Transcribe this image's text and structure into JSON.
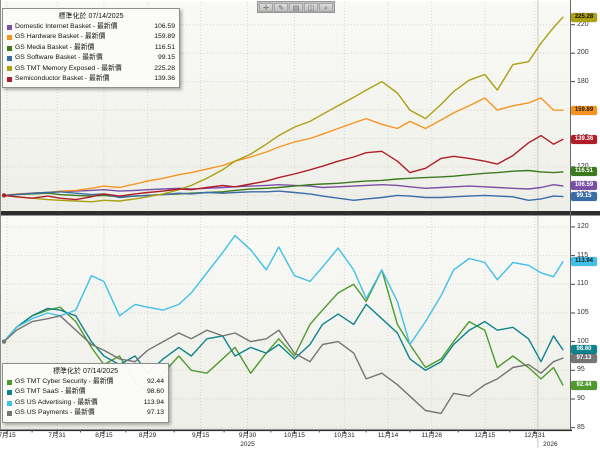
{
  "toolbar": {
    "buttons": [
      {
        "name": "crosshair",
        "glyph": "✛"
      },
      {
        "name": "draw",
        "glyph": "✎"
      },
      {
        "name": "annotate",
        "glyph": "▤"
      },
      {
        "name": "panel",
        "glyph": "◫"
      },
      {
        "name": "zoom",
        "glyph": "⌕"
      }
    ]
  },
  "x_axis": {
    "ticks": [
      {
        "label": "7月15",
        "date": "07/15"
      },
      {
        "label": "7月31",
        "date": "07/31"
      },
      {
        "label": "8月15",
        "date": "08/15"
      },
      {
        "label": "8月29",
        "date": "08/29"
      },
      {
        "label": "9月15",
        "date": "09/15"
      },
      {
        "label": "9月30",
        "date": "09/30"
      },
      {
        "label": "10月15",
        "date": "10/15"
      },
      {
        "label": "10月31",
        "date": "10/31"
      },
      {
        "label": "11月14",
        "date": "11/14"
      },
      {
        "label": "11月28",
        "date": "11/28"
      },
      {
        "label": "12月15",
        "date": "12/15"
      },
      {
        "label": "12月31",
        "date": "12/31"
      }
    ],
    "years": [
      {
        "label": "2025",
        "date": "09/30"
      },
      {
        "label": "2026",
        "date": "01/05"
      }
    ],
    "year_divider_date": "01/01"
  },
  "chart_data": [
    {
      "type": "line",
      "panel": "top",
      "legend_title": "標準化於 07/14/2025",
      "latest_label": "最新價",
      "normalized_base": 100,
      "ylim": [
        89,
        236
      ],
      "yticks": [
        220,
        200,
        180,
        160,
        140,
        120,
        100
      ],
      "x": [
        "07/14",
        "07/18",
        "07/23",
        "07/28",
        "08/01",
        "08/06",
        "08/11",
        "08/15",
        "08/20",
        "08/25",
        "08/29",
        "09/03",
        "09/08",
        "09/12",
        "09/17",
        "09/22",
        "09/26",
        "10/01",
        "10/06",
        "10/10",
        "10/15",
        "10/20",
        "10/24",
        "10/29",
        "11/03",
        "11/07",
        "11/12",
        "11/17",
        "11/21",
        "11/26",
        "12/01",
        "12/05",
        "12/10",
        "12/15",
        "12/19",
        "12/24",
        "12/29",
        "01/02",
        "01/06",
        "01/09"
      ],
      "series": [
        {
          "name": "Domestic Internet Basket",
          "last_price": "106.59",
          "color": "#7b4fa6",
          "badge_text": "#ffffff",
          "values": [
            100,
            100.5,
            101.5,
            102,
            102.5,
            103,
            103.5,
            104,
            103,
            103.5,
            104,
            104.5,
            105,
            104.5,
            105,
            105.5,
            106,
            106.5,
            107,
            107.5,
            107,
            106.5,
            105.5,
            106,
            106.5,
            107,
            107.5,
            107,
            106,
            105,
            105.5,
            106,
            106.5,
            106,
            105.5,
            105,
            104.5,
            105.5,
            107.5,
            106.59
          ]
        },
        {
          "name": "GS Hardware Basket",
          "last_price": "159.89",
          "color": "#f79420",
          "badge_text": "#1a1a1a",
          "values": [
            100,
            101,
            101.5,
            102,
            103,
            103.5,
            105,
            106.5,
            105.5,
            108,
            110,
            112,
            114.5,
            116,
            118.5,
            121,
            124,
            127,
            130.5,
            134,
            137.5,
            140,
            143,
            147,
            151,
            154,
            150,
            147,
            152,
            147,
            153,
            158,
            163,
            168.5,
            160,
            163,
            165,
            168.5,
            160,
            159.89
          ]
        },
        {
          "name": "GS Media Basket",
          "last_price": "116.51",
          "color": "#3c7a1e",
          "badge_text": "#ffffff",
          "values": [
            100,
            100.5,
            101,
            101.5,
            100.5,
            100,
            99.5,
            100,
            99,
            99.5,
            100,
            100.5,
            101,
            101.5,
            102,
            102.5,
            103.5,
            104.5,
            105,
            105.5,
            106.5,
            107.5,
            108,
            108.5,
            109.5,
            110,
            110.5,
            111.5,
            112,
            112.5,
            113,
            113.5,
            114.5,
            115.5,
            116,
            117,
            117.5,
            116.5,
            116,
            116.51
          ]
        },
        {
          "name": "GS Software Basket",
          "last_price": "99.15",
          "color": "#3a6ca8",
          "badge_text": "#ffffff",
          "values": [
            100,
            100.5,
            101.5,
            102,
            102.5,
            101.5,
            100.5,
            101,
            98.5,
            99.5,
            100,
            100.5,
            101.5,
            101,
            102,
            101.5,
            102,
            102.5,
            102.5,
            103,
            102,
            101,
            99.5,
            98,
            96.5,
            97.5,
            98.5,
            100,
            99.5,
            98.5,
            98.5,
            99,
            99.5,
            100,
            99.5,
            99,
            96.5,
            97.5,
            99.5,
            99.15
          ]
        },
        {
          "name": "GS TMT Memory Exposed",
          "last_price": "225.28",
          "color": "#aca013",
          "badge_text": "#101000",
          "values": [
            100,
            99,
            98,
            97,
            96.5,
            96,
            95.5,
            96.5,
            96,
            97.5,
            99,
            101,
            104,
            107,
            112,
            118,
            124,
            129,
            136,
            142,
            148,
            152,
            157,
            163,
            169,
            174,
            180,
            172,
            160,
            154,
            164,
            173,
            181,
            185,
            174,
            192,
            194,
            207,
            218,
            225.28
          ]
        },
        {
          "name": "Semiconductor Basket",
          "last_price": "139.36",
          "color": "#b01f28",
          "badge_text": "#ffffff",
          "values": [
            100,
            99,
            98,
            99.5,
            98,
            97,
            99,
            101,
            99.5,
            101,
            102,
            103,
            104.5,
            104,
            105.5,
            107,
            106,
            108,
            110,
            112.5,
            115,
            118,
            120.5,
            124,
            127,
            130,
            131,
            124,
            116,
            119,
            126,
            127.5,
            126,
            124,
            122,
            128,
            137,
            142,
            136,
            139.36
          ]
        }
      ]
    },
    {
      "type": "line",
      "panel": "bottom",
      "legend_title": "標準化於 07/14/2025",
      "latest_label": "最新價",
      "normalized_base": 100,
      "ylim": [
        84.6,
        121.9
      ],
      "yticks": [
        120,
        115,
        110,
        105,
        100,
        95,
        90,
        85
      ],
      "x": [
        "07/14",
        "07/18",
        "07/23",
        "07/28",
        "08/01",
        "08/06",
        "08/11",
        "08/15",
        "08/20",
        "08/25",
        "08/29",
        "09/03",
        "09/08",
        "09/12",
        "09/17",
        "09/22",
        "09/26",
        "10/01",
        "10/06",
        "10/10",
        "10/15",
        "10/20",
        "10/24",
        "10/29",
        "11/03",
        "11/07",
        "11/12",
        "11/17",
        "11/21",
        "11/26",
        "12/01",
        "12/05",
        "12/10",
        "12/15",
        "12/19",
        "12/24",
        "12/29",
        "01/02",
        "01/06",
        "01/09"
      ],
      "series": [
        {
          "name": "GS TMT Cyber Security",
          "last_price": "92.44",
          "color": "#4f9a2d",
          "badge_text": "#ffffff",
          "values": [
            100,
            102.5,
            104.5,
            105.5,
            106,
            103.5,
            99,
            96,
            97.5,
            93,
            91,
            94.5,
            97.5,
            95,
            94.5,
            97,
            99,
            94.5,
            98,
            100.5,
            97.5,
            103,
            105.5,
            108.5,
            110,
            107,
            112.5,
            103,
            99.5,
            95.5,
            97,
            100,
            103.5,
            102,
            95.5,
            97.5,
            95.5,
            93.5,
            95.5,
            92.44
          ]
        },
        {
          "name": "GS TMT SaaS",
          "last_price": "98.60",
          "color": "#0e838b",
          "badge_text": "#ffffff",
          "values": [
            100,
            102.5,
            104.5,
            105.8,
            105.5,
            104.5,
            100,
            97.5,
            96,
            97.5,
            94.5,
            97,
            99,
            97.5,
            100.5,
            101,
            97.5,
            99,
            98,
            99.5,
            97,
            99.5,
            103,
            104.8,
            103,
            106.5,
            104,
            101.5,
            97,
            95,
            96.5,
            99.5,
            102,
            103.5,
            102,
            102.5,
            100.5,
            96.5,
            101,
            98.6
          ]
        },
        {
          "name": "GS US Advertising",
          "last_price": "113.94",
          "color": "#41c0e8",
          "badge_text": "#1a1a1a",
          "values": [
            100,
            102.5,
            104,
            105,
            104.5,
            105.5,
            111.5,
            110.5,
            104.5,
            106.5,
            106,
            105.5,
            106.5,
            108.5,
            112,
            115.5,
            118.5,
            116,
            112.5,
            116.5,
            111.5,
            110.5,
            113,
            116.3,
            112.5,
            107.5,
            112.5,
            107,
            99.5,
            103.5,
            108,
            112.5,
            114.5,
            113.8,
            110.8,
            113.8,
            113.3,
            112,
            111.3,
            113.94
          ]
        },
        {
          "name": "GS US Payments",
          "last_price": "97.13",
          "color": "#757575",
          "badge_text": "#ffffff",
          "values": [
            100,
            102,
            103.5,
            104,
            104.5,
            102,
            99.5,
            98.5,
            97,
            96.5,
            98.5,
            100,
            101.5,
            100.5,
            102,
            101,
            101.5,
            100,
            100.5,
            102,
            98,
            96.5,
            99.5,
            100,
            98,
            93.5,
            94.5,
            92.5,
            90.5,
            88,
            87.5,
            91,
            90.5,
            92.5,
            93.5,
            95.5,
            96,
            94.5,
            96.5,
            97.13
          ]
        }
      ]
    }
  ]
}
